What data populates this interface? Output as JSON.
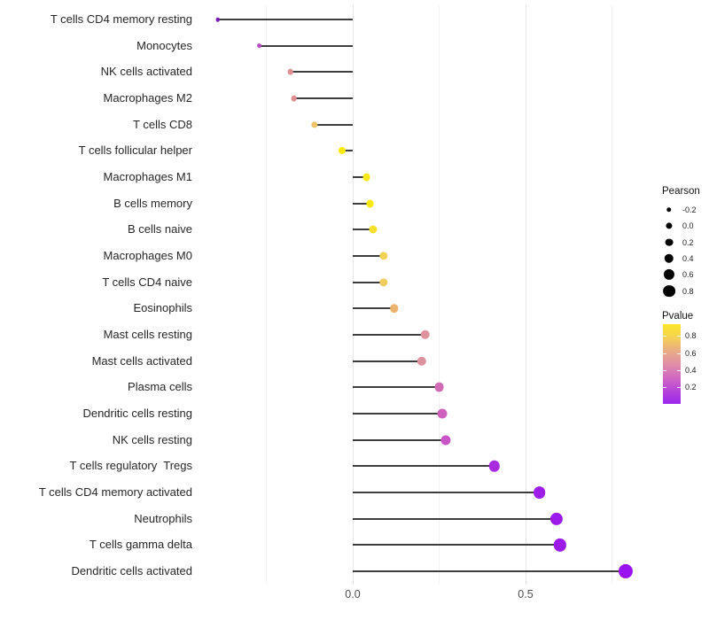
{
  "chart_data": {
    "type": "lollipop",
    "orientation": "horizontal",
    "title": "",
    "xlabel": "",
    "ylabel": "",
    "x_tick_labels": [
      "0.0",
      "0.5"
    ],
    "x_tick_values": [
      0.0,
      0.5
    ],
    "xlim": [
      -0.45,
      0.87
    ],
    "grid": {
      "major": [
        0.0,
        0.5
      ],
      "minor": [
        -0.25,
        0.25,
        0.75
      ]
    },
    "stem_color": "#3d3d3d",
    "axis_text_color": "#4d4d4d",
    "points": [
      {
        "label": "T cells CD4 memory resting",
        "pearson": -0.39,
        "pvalue_est": 0.07,
        "color": "#7c1bbf"
      },
      {
        "label": "Monocytes",
        "pearson": -0.27,
        "pvalue_est": 0.25,
        "color": "#ba4ac4"
      },
      {
        "label": "NK cells activated",
        "pearson": -0.18,
        "pvalue_est": 0.55,
        "color": "#df9092"
      },
      {
        "label": "Macrophages M2",
        "pearson": -0.17,
        "pvalue_est": 0.55,
        "color": "#de8d90"
      },
      {
        "label": "T cells CD8",
        "pearson": -0.11,
        "pvalue_est": 0.7,
        "color": "#efc169"
      },
      {
        "label": "T cells follicular helper",
        "pearson": -0.03,
        "pvalue_est": 0.9,
        "color": "#f7eb06"
      },
      {
        "label": "Macrophages M1",
        "pearson": 0.04,
        "pvalue_est": 0.88,
        "color": "#f8e816"
      },
      {
        "label": "B cells memory",
        "pearson": 0.05,
        "pvalue_est": 0.87,
        "color": "#f8e816"
      },
      {
        "label": "B cells naive",
        "pearson": 0.06,
        "pvalue_est": 0.83,
        "color": "#f6e12c"
      },
      {
        "label": "Macrophages M0",
        "pearson": 0.09,
        "pvalue_est": 0.75,
        "color": "#f2d355"
      },
      {
        "label": "T cells CD4 naive",
        "pearson": 0.09,
        "pvalue_est": 0.72,
        "color": "#f0cb5f"
      },
      {
        "label": "Eosinophils",
        "pearson": 0.12,
        "pvalue_est": 0.63,
        "color": "#ecb36f"
      },
      {
        "label": "Mast cells resting",
        "pearson": 0.21,
        "pvalue_est": 0.53,
        "color": "#de929d"
      },
      {
        "label": "Mast cells activated",
        "pearson": 0.2,
        "pvalue_est": 0.53,
        "color": "#de929d"
      },
      {
        "label": "Plasma cells",
        "pearson": 0.25,
        "pvalue_est": 0.4,
        "color": "#d26bb6"
      },
      {
        "label": "Dendritic cells resting",
        "pearson": 0.26,
        "pvalue_est": 0.37,
        "color": "#ce61bd"
      },
      {
        "label": "NK cells resting",
        "pearson": 0.27,
        "pvalue_est": 0.33,
        "color": "#c955c7"
      },
      {
        "label": "T cells regulatory  Tregs",
        "pearson": 0.41,
        "pvalue_est": 0.15,
        "color": "#a82bdf"
      },
      {
        "label": "T cells CD4 memory activated",
        "pearson": 0.54,
        "pvalue_est": 0.08,
        "color": "#9d1de9"
      },
      {
        "label": "Neutrophils",
        "pearson": 0.59,
        "pvalue_est": 0.07,
        "color": "#9c1aeb"
      },
      {
        "label": "T cells gamma delta",
        "pearson": 0.6,
        "pvalue_est": 0.07,
        "color": "#9c1aeb"
      },
      {
        "label": "Dendritic cells activated",
        "pearson": 0.79,
        "pvalue_est": 0.04,
        "color": "#9a12f0"
      }
    ],
    "legends": {
      "size": {
        "title": "Pearson",
        "entry_labels": [
          "-0.2",
          "0.0",
          "0.2",
          "0.4",
          "0.6",
          "0.8"
        ],
        "entry_values": [
          -0.2,
          0.0,
          0.2,
          0.4,
          0.6,
          0.8
        ],
        "dot_color": "#000000",
        "position": "right"
      },
      "color": {
        "title": "Pvalue",
        "tick_labels": [
          "0.8",
          "0.6",
          "0.4",
          "0.2"
        ],
        "gradient_top_to_bottom": [
          "#fbe726",
          "#f5d054",
          "#eaac86",
          "#df8fa6",
          "#d26ac0",
          "#b644d9",
          "#9b26ee"
        ],
        "position": "right"
      }
    }
  }
}
